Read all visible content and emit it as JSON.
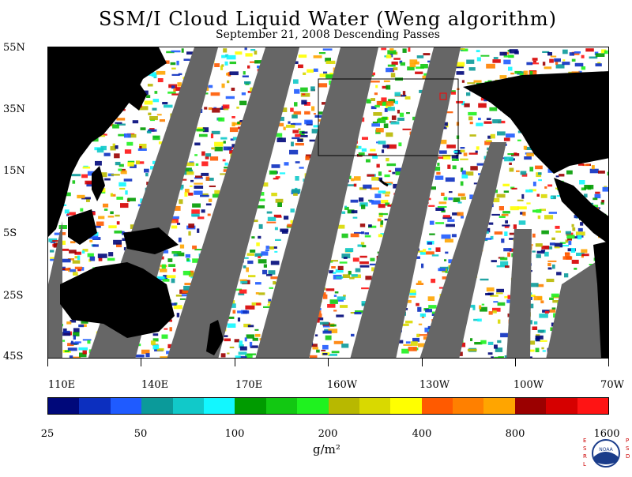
{
  "header": {
    "title": "SSM/I Cloud Liquid Water (Weng algorithm)",
    "subtitle": "September 21, 2008  Descending Passes"
  },
  "axes": {
    "lat_labels": [
      "55N",
      "35N",
      "15N",
      "5S",
      "25S",
      "45S"
    ],
    "lon_labels": [
      "110E",
      "140E",
      "170E",
      "160W",
      "130W",
      "100W",
      "70W"
    ]
  },
  "colorbar": {
    "labels": [
      "25",
      "50",
      "100",
      "200",
      "400",
      "800",
      "1600"
    ],
    "units": "g/m²",
    "colors": [
      "#00087a",
      "#0c2fbf",
      "#1f5bff",
      "#0b9a9a",
      "#11c9c9",
      "#12f7ff",
      "#009b00",
      "#12c812",
      "#1ff21f",
      "#b8b800",
      "#d9d900",
      "#ffff00",
      "#ff5a00",
      "#ff8000",
      "#ffa500",
      "#9b0000",
      "#d60000",
      "#ff1414"
    ]
  },
  "colors": {
    "land": "#000000",
    "no_data": "#666666",
    "clear": "#ffffff"
  },
  "logo": {
    "left_letters": "ESRL",
    "right_letters": "PSD",
    "badge_text": "NOAA"
  }
}
